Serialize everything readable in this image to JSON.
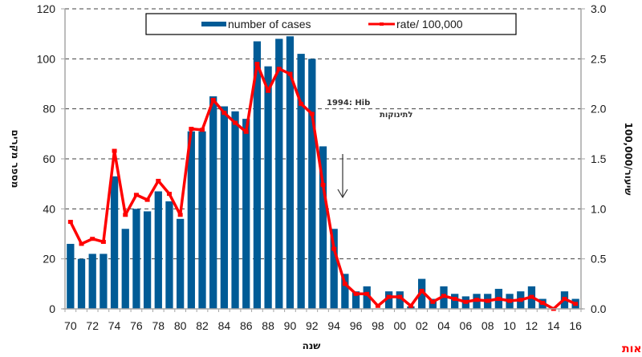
{
  "chart_data": {
    "type": "bar",
    "title": "",
    "xlabel": "שנה",
    "ylabel": "מספר מקרים",
    "y2label": "שיעור/100,000",
    "ylim": [
      0,
      120
    ],
    "y2lim": [
      0,
      3.0
    ],
    "yticks": [
      "0",
      "20",
      "40",
      "60",
      "80",
      "100",
      "120"
    ],
    "y2ticks": [
      "0.0",
      "0.5",
      "1.0",
      "1.5",
      "2.0",
      "2.5",
      "3.0"
    ],
    "grid": true,
    "legend_position": "top-center",
    "categories": [
      "70",
      "71",
      "72",
      "73",
      "74",
      "75",
      "76",
      "77",
      "78",
      "79",
      "80",
      "81",
      "82",
      "83",
      "84",
      "85",
      "86",
      "87",
      "88",
      "89",
      "90",
      "91",
      "92",
      "93",
      "94",
      "95",
      "96",
      "97",
      "98",
      "99",
      "00",
      "01",
      "02",
      "03",
      "04",
      "05",
      "06",
      "07",
      "08",
      "09",
      "10",
      "11",
      "12",
      "13",
      "14",
      "15",
      "16"
    ],
    "xtick_labels": [
      "70",
      "72",
      "74",
      "76",
      "78",
      "80",
      "82",
      "84",
      "86",
      "88",
      "90",
      "92",
      "94",
      "96",
      "98",
      "00",
      "02",
      "04",
      "06",
      "08",
      "10",
      "12",
      "14",
      "16"
    ],
    "series": [
      {
        "name": "number of cases",
        "type": "bar",
        "axis": "left",
        "color": "#005b96",
        "values": [
          26,
          20,
          22,
          22,
          53,
          32,
          40,
          39,
          47,
          43,
          36,
          71,
          71,
          85,
          81,
          79,
          76,
          107,
          97,
          108,
          109,
          102,
          100,
          65,
          32,
          14,
          7,
          9,
          0,
          7,
          7,
          1,
          12,
          4,
          9,
          6,
          5,
          6,
          6,
          8,
          6,
          7,
          9,
          4,
          0,
          7,
          4
        ]
      },
      {
        "name": "rate/ 100,000",
        "type": "line",
        "axis": "right",
        "color": "#ff0000",
        "values": [
          0.87,
          0.65,
          0.7,
          0.67,
          1.58,
          0.94,
          1.14,
          1.09,
          1.28,
          1.15,
          0.94,
          1.8,
          1.79,
          2.09,
          1.96,
          1.86,
          1.77,
          2.45,
          2.18,
          2.4,
          2.35,
          2.05,
          1.95,
          1.24,
          0.6,
          0.25,
          0.15,
          0.15,
          0.03,
          0.12,
          0.12,
          0.03,
          0.18,
          0.07,
          0.13,
          0.1,
          0.07,
          0.09,
          0.08,
          0.1,
          0.08,
          0.09,
          0.12,
          0.06,
          0.0,
          0.1,
          0.05
        ]
      }
    ],
    "annotations": [
      {
        "text_line1": "1994: Hib",
        "text_line2": "לתינוקות",
        "arrow": "down",
        "at_category": "95"
      }
    ],
    "source": "האגף לאפידמיולוגיה, משרד הבריאות"
  }
}
